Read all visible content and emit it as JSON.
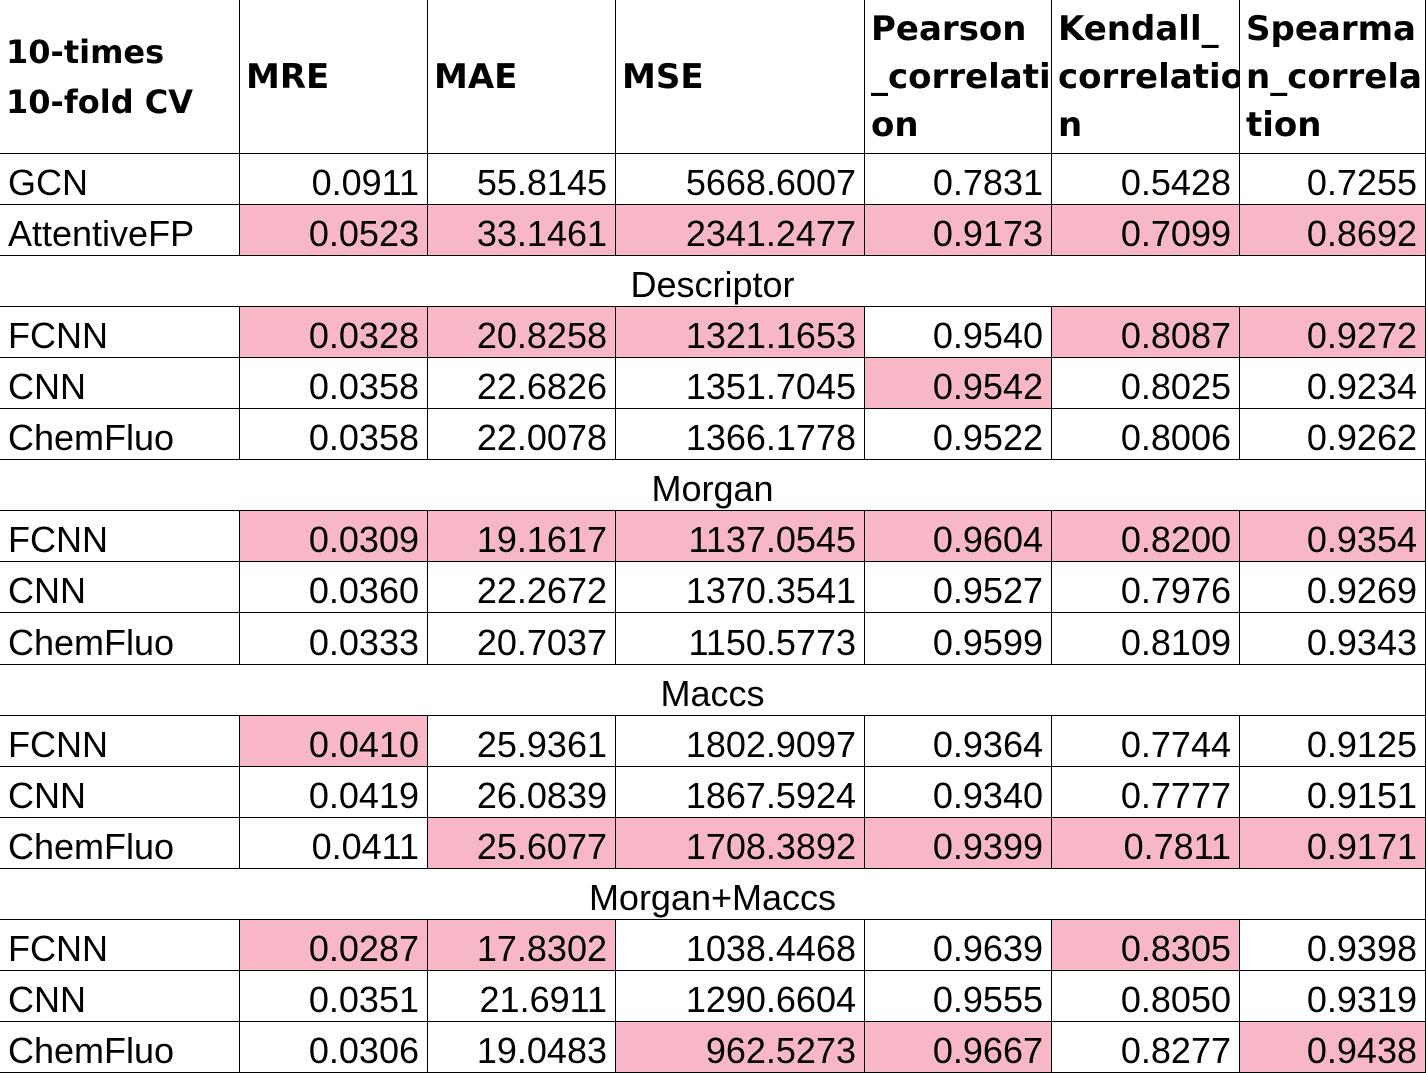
{
  "header": {
    "corner_lines": [
      "10-times",
      "10-fold CV"
    ],
    "columns": [
      {
        "lines": [
          "MRE"
        ]
      },
      {
        "lines": [
          "MAE"
        ]
      },
      {
        "lines": [
          "MSE"
        ]
      },
      {
        "lines": [
          "Pearson",
          "_correlati",
          "on"
        ]
      },
      {
        "lines": [
          "Kendall_",
          "correlatio",
          "n"
        ]
      },
      {
        "lines": [
          "Spearma",
          "n_correla",
          "tion"
        ]
      }
    ]
  },
  "rows": [
    {
      "type": "data",
      "label": "GCN",
      "values": [
        "0.0911",
        "55.8145",
        "5668.6007",
        "0.7831",
        "0.5428",
        "0.7255"
      ],
      "highlight": [
        false,
        false,
        false,
        false,
        false,
        false
      ]
    },
    {
      "type": "data",
      "label": "AttentiveFP",
      "values": [
        "0.0523",
        "33.1461",
        "2341.2477",
        "0.9173",
        "0.7099",
        "0.8692"
      ],
      "highlight": [
        true,
        true,
        true,
        true,
        true,
        true
      ]
    },
    {
      "type": "section",
      "label": "Descriptor"
    },
    {
      "type": "data",
      "label": "FCNN",
      "values": [
        "0.0328",
        "20.8258",
        "1321.1653",
        "0.9540",
        "0.8087",
        "0.9272"
      ],
      "highlight": [
        true,
        true,
        true,
        false,
        true,
        true
      ]
    },
    {
      "type": "data",
      "label": "CNN",
      "values": [
        "0.0358",
        "22.6826",
        "1351.7045",
        "0.9542",
        "0.8025",
        "0.9234"
      ],
      "highlight": [
        false,
        false,
        false,
        true,
        false,
        false
      ]
    },
    {
      "type": "data",
      "label": "ChemFluo",
      "values": [
        "0.0358",
        "22.0078",
        "1366.1778",
        "0.9522",
        "0.8006",
        "0.9262"
      ],
      "highlight": [
        false,
        false,
        false,
        false,
        false,
        false
      ]
    },
    {
      "type": "section",
      "label": "Morgan"
    },
    {
      "type": "data",
      "label": "FCNN",
      "values": [
        "0.0309",
        "19.1617",
        "1137.0545",
        "0.9604",
        "0.8200",
        "0.9354"
      ],
      "highlight": [
        true,
        true,
        true,
        true,
        true,
        true
      ]
    },
    {
      "type": "data",
      "label": "CNN",
      "values": [
        "0.0360",
        "22.2672",
        "1370.3541",
        "0.9527",
        "0.7976",
        "0.9269"
      ],
      "highlight": [
        false,
        false,
        false,
        false,
        false,
        false
      ]
    },
    {
      "type": "data",
      "label": "ChemFluo",
      "values": [
        "0.0333",
        "20.7037",
        "1150.5773",
        "0.9599",
        "0.8109",
        "0.9343"
      ],
      "highlight": [
        false,
        false,
        false,
        false,
        false,
        false
      ]
    },
    {
      "type": "section",
      "label": "Maccs"
    },
    {
      "type": "data",
      "label": "FCNN",
      "values": [
        "0.0410",
        "25.9361",
        "1802.9097",
        "0.9364",
        "0.7744",
        "0.9125"
      ],
      "highlight": [
        true,
        false,
        false,
        false,
        false,
        false
      ]
    },
    {
      "type": "data",
      "label": "CNN",
      "values": [
        "0.0419",
        "26.0839",
        "1867.5924",
        "0.9340",
        "0.7777",
        "0.9151"
      ],
      "highlight": [
        false,
        false,
        false,
        false,
        false,
        false
      ]
    },
    {
      "type": "data",
      "label": "ChemFluo",
      "values": [
        "0.0411",
        "25.6077",
        "1708.3892",
        "0.9399",
        "0.7811",
        "0.9171"
      ],
      "highlight": [
        false,
        true,
        true,
        true,
        true,
        true
      ]
    },
    {
      "type": "section",
      "label": "Morgan+Maccs"
    },
    {
      "type": "data",
      "label": "FCNN",
      "values": [
        "0.0287",
        "17.8302",
        "1038.4468",
        "0.9639",
        "0.8305",
        "0.9398"
      ],
      "highlight": [
        true,
        true,
        false,
        false,
        true,
        false
      ]
    },
    {
      "type": "data",
      "label": "CNN",
      "values": [
        "0.0351",
        "21.6911",
        "1290.6604",
        "0.9555",
        "0.8050",
        "0.9319"
      ],
      "highlight": [
        false,
        false,
        false,
        false,
        false,
        false
      ]
    },
    {
      "type": "data",
      "label": "ChemFluo",
      "values": [
        "0.0306",
        "19.0483",
        "962.5273",
        "0.9667",
        "0.8277",
        "0.9438"
      ],
      "highlight": [
        false,
        false,
        true,
        true,
        false,
        true
      ]
    }
  ],
  "colors": {
    "highlight": "#f8b7c7",
    "border": "#000000",
    "background": "#ffffff"
  }
}
